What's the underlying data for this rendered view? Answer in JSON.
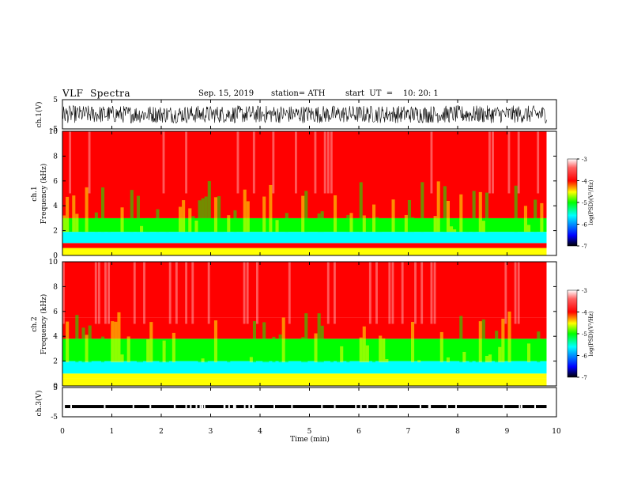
{
  "header": {
    "title": "VLF  Spectra",
    "date": "Sep. 15, 2019",
    "station": "station= ATH",
    "start": "start  UT  =    10: 20: 1"
  },
  "colors": {
    "background": "#ffffff",
    "axis": "#000000",
    "waveform": "#000000",
    "colormap": [
      "#000000",
      "#0000ff",
      "#00ffff",
      "#00ff00",
      "#ffff00",
      "#ff0000",
      "#ffffff"
    ]
  },
  "chart_data": [
    {
      "type": "line",
      "id": "ch1",
      "ylabel": "ch.1(V)",
      "ylim": [
        -5,
        5
      ],
      "y_ticks": [
        "5",
        "-5"
      ],
      "xlim": [
        0,
        10
      ],
      "description_of_values": "noise-like waveform, amplitude ~ ±3 V"
    },
    {
      "type": "heatmap",
      "id": "ch1-spec",
      "ylabel": "ch.1\nFrequency (kHz)",
      "ylim": [
        0,
        10
      ],
      "y_ticks": [
        "0",
        "2",
        "4",
        "6",
        "8",
        "10"
      ],
      "xlim": [
        0,
        9.8
      ],
      "colorbar": {
        "label": "log(PSD)(V²/Hz)",
        "range": [
          -7,
          -3
        ],
        "ticks": [
          "-3",
          "-4",
          "-5",
          "-6",
          "-7"
        ]
      },
      "bands_khz_logpsd": [
        {
          "from": 0,
          "to": 0.6,
          "level": -4.3
        },
        {
          "from": 0.6,
          "to": 1.0,
          "level": -4.0
        },
        {
          "from": 1.0,
          "to": 1.9,
          "level": -5.4
        },
        {
          "from": 1.9,
          "to": 3.0,
          "level": -4.6
        },
        {
          "from": 3.0,
          "to": 5.0,
          "level": -3.9
        },
        {
          "from": 5.0,
          "to": 10.0,
          "level": -3.4
        }
      ]
    },
    {
      "type": "heatmap",
      "id": "ch2-spec",
      "ylabel": "ch.2\nFrequency (kHz)",
      "ylim": [
        0,
        10
      ],
      "y_ticks": [
        "0",
        "2",
        "4",
        "6",
        "8",
        "10"
      ],
      "xlim": [
        0,
        9.8
      ],
      "colorbar": {
        "label": "log(PSD)(V²/Hz)",
        "range": [
          -7,
          -3
        ],
        "ticks": [
          "-3",
          "-4",
          "-5",
          "-6",
          "-7"
        ]
      },
      "bands_khz_logpsd": [
        {
          "from": 0,
          "to": 0.6,
          "level": -4.1
        },
        {
          "from": 0.6,
          "to": 1.0,
          "level": -4.3
        },
        {
          "from": 1.0,
          "to": 2.0,
          "level": -5.2
        },
        {
          "from": 2.0,
          "to": 3.8,
          "level": -4.8
        },
        {
          "from": 3.8,
          "to": 5.5,
          "level": -4.0
        },
        {
          "from": 5.5,
          "to": 10.0,
          "level": -3.4
        }
      ]
    },
    {
      "type": "line",
      "id": "ch3",
      "ylabel": "ch.3(V)",
      "ylim": [
        -5,
        5
      ],
      "y_ticks": [
        "5",
        "-5"
      ],
      "xlim": [
        0,
        10
      ],
      "level_v": -1.5
    }
  ],
  "x_axis": {
    "label": "Time  (min)",
    "ticks": [
      "0",
      "1",
      "2",
      "3",
      "4",
      "5",
      "6",
      "7",
      "8",
      "9",
      "10"
    ],
    "range": [
      0,
      10
    ]
  }
}
